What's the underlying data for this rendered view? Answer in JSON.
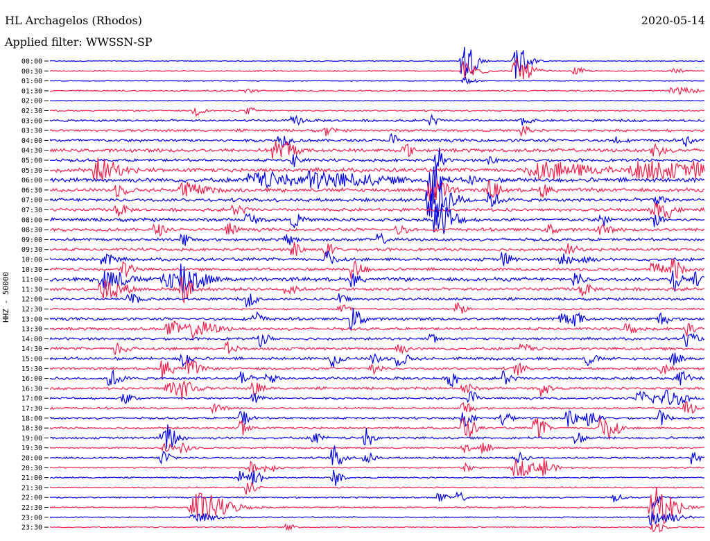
{
  "header": {
    "title": "HL Archagelos (Rhodos)",
    "date": "2020-05-14",
    "filter": "Applied filter: WWSSN-SP"
  },
  "chart_data": {
    "type": "line",
    "ylabel": "HHZ - 50000",
    "row_labels": [
      "00:00",
      "00:30",
      "01:00",
      "01:30",
      "02:00",
      "02:30",
      "03:00",
      "03:30",
      "04:00",
      "04:30",
      "05:00",
      "05:30",
      "06:00",
      "06:30",
      "07:00",
      "07:30",
      "08:00",
      "08:30",
      "09:00",
      "09:30",
      "10:00",
      "10:30",
      "11:00",
      "11:30",
      "12:00",
      "12:30",
      "13:00",
      "13:30",
      "14:00",
      "14:30",
      "15:00",
      "15:30",
      "16:00",
      "16:30",
      "17:00",
      "17:30",
      "18:00",
      "18:30",
      "19:00",
      "19:30",
      "20:00",
      "20:30",
      "21:00",
      "21:30",
      "22:00",
      "22:30",
      "23:00",
      "23:30"
    ],
    "colors": [
      "#0000e6",
      "#f0204a"
    ],
    "noise_level": [
      0.6,
      0.8,
      0.5,
      0.9,
      0.5,
      1.0,
      1.5,
      1.6,
      2.0,
      2.2,
      1.8,
      2.6,
      2.8,
      2.4,
      2.2,
      2.0,
      2.2,
      2.0,
      1.8,
      1.8,
      2.0,
      1.8,
      2.4,
      2.0,
      1.6,
      1.2,
      1.8,
      1.8,
      1.6,
      1.8,
      1.8,
      1.6,
      1.8,
      1.6,
      1.4,
      1.2,
      1.4,
      1.3,
      1.4,
      1.1,
      1.2,
      1.0,
      0.9,
      0.8,
      1.0,
      0.9,
      0.8,
      0.7
    ],
    "events": [
      [
        [
          0.63,
          30,
          0.012
        ],
        [
          0.71,
          26,
          0.012
        ]
      ],
      [
        [
          0.63,
          14,
          0.015
        ],
        [
          0.71,
          18,
          0.015
        ],
        [
          0.8,
          5,
          0.01
        ],
        [
          0.95,
          3,
          0.01
        ]
      ],
      [
        [
          0.63,
          6,
          0.01
        ]
      ],
      [
        [
          0.3,
          4,
          0.008
        ],
        [
          0.95,
          5,
          0.02
        ]
      ],
      [],
      [
        [
          0.22,
          8,
          0.008
        ],
        [
          0.3,
          5,
          0.008
        ]
      ],
      [
        [
          0.37,
          6,
          0.01
        ],
        [
          0.58,
          10,
          0.006
        ],
        [
          0.72,
          6,
          0.008
        ]
      ],
      [
        [
          0.42,
          8,
          0.006
        ],
        [
          0.72,
          10,
          0.006
        ]
      ],
      [
        [
          0.35,
          12,
          0.008
        ],
        [
          0.52,
          10,
          0.006
        ],
        [
          0.86,
          8,
          0.006
        ],
        [
          0.97,
          8,
          0.006
        ]
      ],
      [
        [
          0.34,
          14,
          0.01
        ],
        [
          0.36,
          12,
          0.01
        ],
        [
          0.54,
          10,
          0.008
        ],
        [
          0.92,
          10,
          0.01
        ]
      ],
      [
        [
          0.37,
          10,
          0.008
        ],
        [
          0.59,
          22,
          0.006
        ],
        [
          0.67,
          6,
          0.008
        ]
      ],
      [
        [
          0.07,
          16,
          0.02
        ],
        [
          0.74,
          12,
          0.05
        ],
        [
          0.9,
          12,
          0.05
        ],
        [
          0.98,
          8,
          0.01
        ]
      ],
      [
        [
          0.31,
          10,
          0.04
        ],
        [
          0.4,
          10,
          0.06
        ],
        [
          0.58,
          28,
          0.01
        ],
        [
          0.64,
          6,
          0.008
        ]
      ],
      [
        [
          0.1,
          8,
          0.01
        ],
        [
          0.2,
          10,
          0.02
        ],
        [
          0.58,
          18,
          0.015
        ],
        [
          0.67,
          12,
          0.01
        ],
        [
          0.75,
          10,
          0.008
        ]
      ],
      [
        [
          0.58,
          30,
          0.02
        ],
        [
          0.67,
          10,
          0.01
        ],
        [
          0.92,
          8,
          0.01
        ]
      ],
      [
        [
          0.1,
          10,
          0.008
        ],
        [
          0.28,
          8,
          0.01
        ],
        [
          0.92,
          12,
          0.01
        ],
        [
          0.94,
          10,
          0.01
        ]
      ],
      [
        [
          0.3,
          10,
          0.008
        ],
        [
          0.37,
          10,
          0.008
        ],
        [
          0.59,
          30,
          0.015
        ],
        [
          0.84,
          10,
          0.008
        ],
        [
          0.92,
          10,
          0.008
        ]
      ],
      [
        [
          0.16,
          10,
          0.008
        ],
        [
          0.27,
          10,
          0.008
        ],
        [
          0.53,
          8,
          0.008
        ],
        [
          0.76,
          8,
          0.008
        ],
        [
          0.84,
          10,
          0.008
        ]
      ],
      [
        [
          0.2,
          10,
          0.008
        ],
        [
          0.36,
          8,
          0.008
        ],
        [
          0.5,
          8,
          0.008
        ]
      ],
      [
        [
          0.37,
          12,
          0.008
        ],
        [
          0.42,
          10,
          0.008
        ],
        [
          0.79,
          8,
          0.008
        ]
      ],
      [
        [
          0.08,
          10,
          0.01
        ],
        [
          0.42,
          12,
          0.01
        ],
        [
          0.69,
          10,
          0.008
        ],
        [
          0.78,
          12,
          0.008
        ],
        [
          0.81,
          10,
          0.008
        ]
      ],
      [
        [
          0.11,
          12,
          0.01
        ],
        [
          0.46,
          14,
          0.01
        ],
        [
          0.92,
          10,
          0.01
        ],
        [
          0.95,
          16,
          0.008
        ]
      ],
      [
        [
          0.08,
          16,
          0.02
        ],
        [
          0.17,
          12,
          0.02
        ],
        [
          0.2,
          22,
          0.02
        ],
        [
          0.46,
          10,
          0.008
        ],
        [
          0.8,
          10,
          0.008
        ],
        [
          0.95,
          18,
          0.008
        ],
        [
          0.98,
          10,
          0.008
        ]
      ],
      [
        [
          0.08,
          14,
          0.02
        ],
        [
          0.2,
          20,
          0.01
        ],
        [
          0.36,
          10,
          0.008
        ],
        [
          0.81,
          10,
          0.008
        ]
      ],
      [
        [
          0.12,
          8,
          0.01
        ],
        [
          0.3,
          10,
          0.008
        ],
        [
          0.44,
          8,
          0.008
        ]
      ],
      [
        [
          0.44,
          10,
          0.008
        ],
        [
          0.62,
          10,
          0.008
        ]
      ],
      [
        [
          0.31,
          12,
          0.008
        ],
        [
          0.46,
          16,
          0.01
        ],
        [
          0.78,
          10,
          0.008
        ],
        [
          0.8,
          10,
          0.008
        ],
        [
          0.93,
          10,
          0.008
        ]
      ],
      [
        [
          0.18,
          10,
          0.02
        ],
        [
          0.22,
          10,
          0.02
        ],
        [
          0.88,
          10,
          0.008
        ],
        [
          0.97,
          10,
          0.008
        ]
      ],
      [
        [
          0.32,
          10,
          0.008
        ],
        [
          0.58,
          8,
          0.008
        ],
        [
          0.97,
          10,
          0.01
        ]
      ],
      [
        [
          0.1,
          10,
          0.01
        ],
        [
          0.27,
          10,
          0.008
        ],
        [
          0.53,
          8,
          0.008
        ],
        [
          0.72,
          8,
          0.008
        ]
      ],
      [
        [
          0.2,
          14,
          0.008
        ],
        [
          0.43,
          12,
          0.008
        ],
        [
          0.49,
          10,
          0.008
        ],
        [
          0.53,
          10,
          0.01
        ],
        [
          0.82,
          10,
          0.008
        ],
        [
          0.95,
          10,
          0.008
        ]
      ],
      [
        [
          0.17,
          14,
          0.01
        ],
        [
          0.21,
          14,
          0.01
        ],
        [
          0.49,
          10,
          0.008
        ],
        [
          0.71,
          10,
          0.008
        ],
        [
          0.93,
          12,
          0.008
        ]
      ],
      [
        [
          0.09,
          12,
          0.01
        ],
        [
          0.29,
          10,
          0.008
        ],
        [
          0.33,
          10,
          0.008
        ],
        [
          0.61,
          12,
          0.008
        ],
        [
          0.69,
          12,
          0.008
        ],
        [
          0.96,
          12,
          0.008
        ]
      ],
      [
        [
          0.18,
          10,
          0.02
        ],
        [
          0.2,
          10,
          0.01
        ],
        [
          0.31,
          12,
          0.008
        ],
        [
          0.63,
          10,
          0.008
        ],
        [
          0.75,
          10,
          0.008
        ]
      ],
      [
        [
          0.11,
          8,
          0.01
        ],
        [
          0.31,
          8,
          0.008
        ],
        [
          0.64,
          12,
          0.008
        ],
        [
          0.9,
          10,
          0.02
        ],
        [
          0.94,
          10,
          0.02
        ]
      ],
      [
        [
          0.25,
          8,
          0.008
        ],
        [
          0.63,
          12,
          0.008
        ],
        [
          0.97,
          12,
          0.008
        ]
      ],
      [
        [
          0.29,
          12,
          0.008
        ],
        [
          0.63,
          12,
          0.008
        ],
        [
          0.69,
          10,
          0.008
        ],
        [
          0.79,
          14,
          0.01
        ],
        [
          0.82,
          10,
          0.01
        ],
        [
          0.93,
          10,
          0.008
        ]
      ],
      [
        [
          0.29,
          14,
          0.008
        ],
        [
          0.63,
          20,
          0.01
        ],
        [
          0.74,
          16,
          0.01
        ],
        [
          0.84,
          14,
          0.01
        ],
        [
          0.85,
          16,
          0.01
        ]
      ],
      [
        [
          0.17,
          12,
          0.008
        ],
        [
          0.18,
          14,
          0.01
        ],
        [
          0.4,
          10,
          0.008
        ],
        [
          0.48,
          14,
          0.008
        ],
        [
          0.8,
          10,
          0.008
        ]
      ],
      [
        [
          0.17,
          10,
          0.008
        ],
        [
          0.2,
          10,
          0.008
        ],
        [
          0.63,
          8,
          0.008
        ],
        [
          0.66,
          8,
          0.008
        ]
      ],
      [
        [
          0.17,
          14,
          0.008
        ],
        [
          0.43,
          18,
          0.01
        ],
        [
          0.48,
          10,
          0.008
        ],
        [
          0.71,
          8,
          0.01
        ],
        [
          0.98,
          14,
          0.006
        ]
      ],
      [
        [
          0.3,
          10,
          0.008
        ],
        [
          0.33,
          10,
          0.008
        ],
        [
          0.63,
          8,
          0.008
        ],
        [
          0.71,
          12,
          0.02
        ],
        [
          0.75,
          14,
          0.01
        ]
      ],
      [
        [
          0.29,
          10,
          0.008
        ],
        [
          0.31,
          14,
          0.008
        ],
        [
          0.43,
          14,
          0.008
        ]
      ],
      [
        [
          0.3,
          10,
          0.008
        ]
      ],
      [
        [
          0.59,
          8,
          0.008
        ],
        [
          0.62,
          8,
          0.008
        ],
        [
          0.86,
          6,
          0.008
        ],
        [
          0.92,
          18,
          0.006
        ]
      ],
      [
        [
          0.22,
          22,
          0.03
        ],
        [
          0.92,
          30,
          0.02
        ]
      ],
      [
        [
          0.22,
          6,
          0.02
        ],
        [
          0.92,
          14,
          0.02
        ]
      ],
      [
        [
          0.36,
          4,
          0.01
        ],
        [
          0.92,
          10,
          0.01
        ]
      ]
    ]
  }
}
